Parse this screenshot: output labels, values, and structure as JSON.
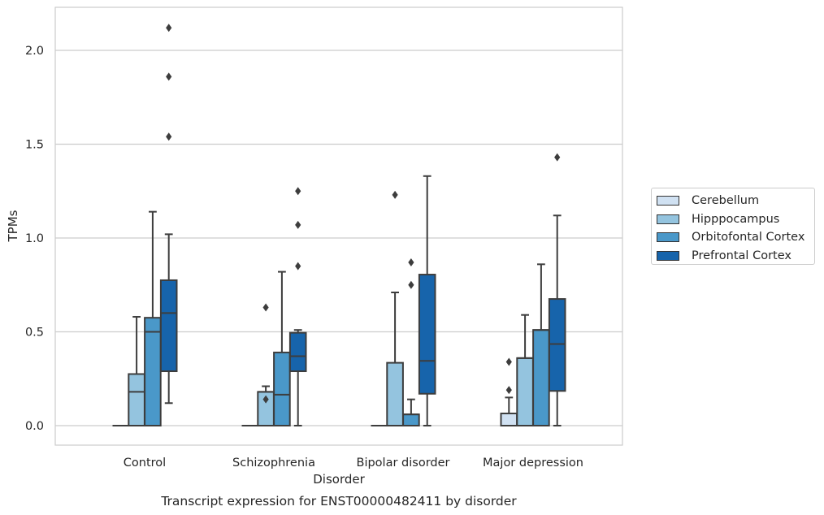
{
  "chart_data": {
    "type": "boxplot",
    "title": "Transcript expression for ENST00000482411 by disorder",
    "xlabel": "Disorder",
    "ylabel": "TPMs",
    "categories": [
      "Control",
      "Schizophrenia",
      "Bipolar disorder",
      "Major depression"
    ],
    "ylim": [
      -0.1,
      2.23
    ],
    "yticks": [
      "0.0",
      "0.5",
      "1.0",
      "1.5",
      "2.0"
    ],
    "grid": "horizontal",
    "legend_position": "right",
    "series": [
      {
        "name": "Cerebellum",
        "color": "#d0e1f2",
        "boxes": [
          {
            "q1": 0,
            "median": 0,
            "q3": 0,
            "whisker_low": 0,
            "whisker_high": 0,
            "outliers": []
          },
          {
            "q1": 0,
            "median": 0,
            "q3": 0,
            "whisker_low": 0,
            "whisker_high": 0,
            "outliers": []
          },
          {
            "q1": 0,
            "median": 0,
            "q3": 0,
            "whisker_low": 0,
            "whisker_high": 0,
            "outliers": []
          },
          {
            "q1": 0,
            "median": 0,
            "q3": 0.065,
            "whisker_low": 0,
            "whisker_high": 0.15,
            "outliers": [
              0.19,
              0.34
            ]
          }
        ]
      },
      {
        "name": "Hipppocampus",
        "color": "#94c4df",
        "boxes": [
          {
            "q1": 0,
            "median": 0.18,
            "q3": 0.275,
            "whisker_low": 0,
            "whisker_high": 0.58,
            "outliers": []
          },
          {
            "q1": 0,
            "median": 0.18,
            "q3": 0.18,
            "whisker_low": 0,
            "whisker_high": 0.21,
            "outliers": [
              0.14,
              0.63
            ]
          },
          {
            "q1": 0,
            "median": 0,
            "q3": 0.335,
            "whisker_low": 0,
            "whisker_high": 0.71,
            "outliers": [
              1.23
            ]
          },
          {
            "q1": 0,
            "median": 0.36,
            "q3": 0.36,
            "whisker_low": 0,
            "whisker_high": 0.59,
            "outliers": []
          }
        ]
      },
      {
        "name": "Orbitofontal Cortex",
        "color": "#4a98c9",
        "boxes": [
          {
            "q1": 0,
            "median": 0.5,
            "q3": 0.575,
            "whisker_low": 0,
            "whisker_high": 1.14,
            "outliers": []
          },
          {
            "q1": 0,
            "median": 0.165,
            "q3": 0.39,
            "whisker_low": 0,
            "whisker_high": 0.82,
            "outliers": []
          },
          {
            "q1": 0,
            "median": 0.06,
            "q3": 0.06,
            "whisker_low": 0,
            "whisker_high": 0.14,
            "outliers": [
              0.75,
              0.87
            ]
          },
          {
            "q1": 0,
            "median": 0.51,
            "q3": 0.51,
            "whisker_low": 0,
            "whisker_high": 0.86,
            "outliers": []
          }
        ]
      },
      {
        "name": "Prefrontal Cortex",
        "color": "#1764ab",
        "boxes": [
          {
            "q1": 0.29,
            "median": 0.6,
            "q3": 0.775,
            "whisker_low": 0.12,
            "whisker_high": 1.02,
            "outliers": [
              1.54,
              1.86,
              2.12
            ]
          },
          {
            "q1": 0.29,
            "median": 0.37,
            "q3": 0.495,
            "whisker_low": 0,
            "whisker_high": 0.51,
            "outliers": [
              0.85,
              1.07,
              1.25
            ]
          },
          {
            "q1": 0.17,
            "median": 0.345,
            "q3": 0.805,
            "whisker_low": 0,
            "whisker_high": 1.33,
            "outliers": []
          },
          {
            "q1": 0.185,
            "median": 0.435,
            "q3": 0.675,
            "whisker_low": 0,
            "whisker_high": 1.12,
            "outliers": [
              1.43
            ]
          }
        ]
      }
    ]
  }
}
